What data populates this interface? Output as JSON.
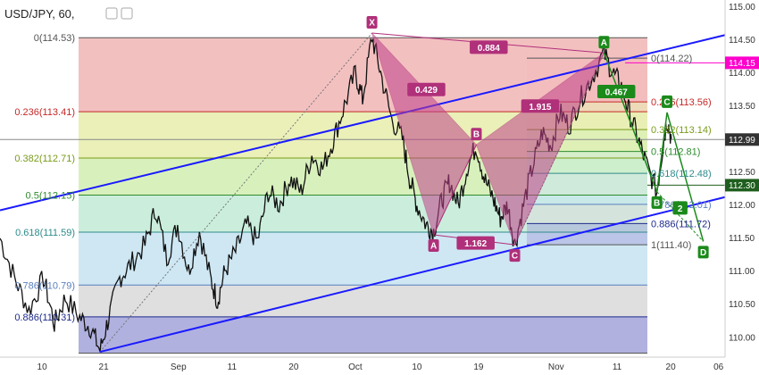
{
  "chart_data": {
    "type": "line",
    "title": "USD/JPY, 60,",
    "colors": {
      "candles": "#111111",
      "channel": "#1a1aff",
      "pattern": "#b0307a",
      "pattern_fill": "#c0408a",
      "highlight": "#ff00cc",
      "green_marker": "#1b8a1b",
      "grey_line": "#888888"
    },
    "ylim": [
      109.7,
      115.1
    ],
    "y_ticks": [
      "115.00",
      "114.50",
      "114.00",
      "113.50",
      "113.00",
      "112.50",
      "112.00",
      "111.50",
      "111.00",
      "110.50",
      "110.00"
    ],
    "x_ticks": [
      "10",
      "21",
      "Sep",
      "11",
      "20",
      "Oct",
      "10",
      "19",
      "Nov",
      "11",
      "20",
      "06"
    ],
    "price_tags": [
      {
        "label": "114.15",
        "value": 114.15,
        "color": "#ff00cc"
      },
      {
        "label": "112.99",
        "value": 112.99,
        "color": "#333333"
      },
      {
        "label": "112.30",
        "value": 112.3,
        "color": "#1e5e1e"
      }
    ],
    "fib_left": [
      {
        "label": "0(114.53)",
        "value": 114.53,
        "color": "#555555",
        "band": "#f2b9b9"
      },
      {
        "label": "0.236(113.41)",
        "value": 113.41,
        "color": "#c62828",
        "band": "#e8eeb0"
      },
      {
        "label": "0.382(112.71)",
        "value": 112.71,
        "color": "#7a9b1a",
        "band": "#d4f0b5"
      },
      {
        "label": "0.5(112.15)",
        "value": 112.15,
        "color": "#2e8b2e",
        "band": "#c5ecd8"
      },
      {
        "label": "0.618(111.59)",
        "value": 111.59,
        "color": "#2e8b8b",
        "band": "#c9e4f2"
      },
      {
        "label": "0.786(110.79)",
        "value": 110.79,
        "color": "#5b7fbf",
        "band": "#dcdcdc"
      },
      {
        "label": "0.886(110.31)",
        "value": 110.31,
        "color": "#1e2a8b",
        "band": "#a9a9dd"
      },
      {
        "label": "",
        "value": 109.76,
        "color": "#555555",
        "band": ""
      }
    ],
    "fib_right": [
      {
        "label": "0(114.22)",
        "value": 114.22,
        "color": "#555555",
        "band": "#f2b9b9"
      },
      {
        "label": "0.236(113.56)",
        "value": 113.56,
        "color": "#c62828",
        "band": "#e8eeb0"
      },
      {
        "label": "0.382(113.14)",
        "value": 113.14,
        "color": "#7a9b1a",
        "band": "#d4f0b5"
      },
      {
        "label": "0.5(112.81)",
        "value": 112.81,
        "color": "#2e8b2e",
        "band": "#c5ecd8"
      },
      {
        "label": "0.618(112.48)",
        "value": 112.48,
        "color": "#2e8b8b",
        "band": "#c9e4f2"
      },
      {
        "label": "0.786(112.01)",
        "value": 112.01,
        "color": "#5b7fbf",
        "band": "#dcdcdc"
      },
      {
        "label": "0.886(111.72)",
        "value": 111.72,
        "color": "#1e2a8b",
        "band": "#a9a9dd"
      },
      {
        "label": "1(111.40)",
        "value": 111.4,
        "color": "#555555",
        "band": ""
      }
    ],
    "pattern_points": [
      {
        "label": "X",
        "t": 0.513,
        "y": 114.6,
        "side": "above",
        "color": "#b0307a"
      },
      {
        "label": "A",
        "t": 0.598,
        "y": 111.55,
        "side": "below",
        "color": "#b0307a"
      },
      {
        "label": "B",
        "t": 0.657,
        "y": 112.91,
        "side": "above",
        "color": "#b0307a"
      },
      {
        "label": "C",
        "t": 0.71,
        "y": 111.4,
        "side": "below",
        "color": "#b0307a"
      },
      {
        "label": "A",
        "t": 0.833,
        "y": 114.3,
        "side": "above",
        "color": "#1b8a1b"
      },
      {
        "label": "B",
        "t": 0.906,
        "y": 112.2,
        "side": "below",
        "color": "#1b8a1b"
      },
      {
        "label": "C",
        "t": 0.92,
        "y": 113.4,
        "side": "above",
        "color": "#1b8a1b"
      },
      {
        "label": "D",
        "t": 0.97,
        "y": 111.45,
        "side": "below",
        "color": "#1b8a1b"
      }
    ],
    "ratios": [
      {
        "label": "0.884",
        "t": 0.674,
        "y": 114.38,
        "color": "#b0307a"
      },
      {
        "label": "0.429",
        "t": 0.588,
        "y": 113.74,
        "color": "#b0307a"
      },
      {
        "label": "1.915",
        "t": 0.745,
        "y": 113.49,
        "color": "#b0307a"
      },
      {
        "label": "1.162",
        "t": 0.656,
        "y": 111.42,
        "color": "#b0307a"
      },
      {
        "label": "0.467",
        "t": 0.85,
        "y": 113.71,
        "color": "#1b8a1b"
      },
      {
        "label": "2",
        "t": 0.938,
        "y": 111.95,
        "color": "#1b8a1b"
      }
    ],
    "channel": [
      {
        "t0": 0.0,
        "y0": 111.92,
        "t1": 1.0,
        "y1": 114.57
      },
      {
        "t0": 0.138,
        "y0": 109.78,
        "t1": 1.0,
        "y1": 112.12
      }
    ],
    "price_path": [
      [
        0.0,
        111.5
      ],
      [
        0.02,
        110.9
      ],
      [
        0.04,
        110.4
      ],
      [
        0.06,
        110.9
      ],
      [
        0.075,
        110.2
      ],
      [
        0.09,
        110.6
      ],
      [
        0.11,
        110.3
      ],
      [
        0.125,
        110.15
      ],
      [
        0.138,
        109.8
      ],
      [
        0.15,
        110.3
      ],
      [
        0.165,
        110.9
      ],
      [
        0.18,
        111.1
      ],
      [
        0.2,
        111.4
      ],
      [
        0.215,
        111.95
      ],
      [
        0.23,
        111.2
      ],
      [
        0.245,
        111.7
      ],
      [
        0.26,
        111.0
      ],
      [
        0.275,
        111.6
      ],
      [
        0.29,
        110.9
      ],
      [
        0.3,
        110.55
      ],
      [
        0.31,
        111.0
      ],
      [
        0.325,
        111.3
      ],
      [
        0.34,
        111.7
      ],
      [
        0.355,
        111.45
      ],
      [
        0.37,
        112.2
      ],
      [
        0.385,
        112.0
      ],
      [
        0.4,
        112.4
      ],
      [
        0.415,
        112.2
      ],
      [
        0.43,
        112.75
      ],
      [
        0.445,
        112.55
      ],
      [
        0.46,
        113.0
      ],
      [
        0.475,
        113.5
      ],
      [
        0.49,
        114.0
      ],
      [
        0.5,
        113.6
      ],
      [
        0.513,
        114.55
      ],
      [
        0.525,
        114.0
      ],
      [
        0.54,
        113.3
      ],
      [
        0.555,
        113.0
      ],
      [
        0.565,
        112.4
      ],
      [
        0.575,
        112.0
      ],
      [
        0.588,
        111.7
      ],
      [
        0.598,
        111.6
      ],
      [
        0.61,
        112.1
      ],
      [
        0.62,
        112.35
      ],
      [
        0.632,
        112.0
      ],
      [
        0.645,
        112.6
      ],
      [
        0.657,
        112.9
      ],
      [
        0.668,
        112.4
      ],
      [
        0.68,
        112.1
      ],
      [
        0.69,
        111.8
      ],
      [
        0.7,
        112.0
      ],
      [
        0.71,
        111.4
      ],
      [
        0.722,
        112.0
      ],
      [
        0.735,
        112.6
      ],
      [
        0.748,
        113.1
      ],
      [
        0.76,
        112.9
      ],
      [
        0.772,
        113.4
      ],
      [
        0.785,
        113.2
      ],
      [
        0.8,
        113.6
      ],
      [
        0.815,
        113.9
      ],
      [
        0.833,
        114.3
      ],
      [
        0.845,
        114.0
      ],
      [
        0.857,
        113.8
      ],
      [
        0.868,
        113.4
      ],
      [
        0.88,
        113.0
      ],
      [
        0.892,
        112.6
      ],
      [
        0.906,
        112.2
      ],
      [
        0.913,
        112.8
      ],
      [
        0.92,
        113.3
      ],
      [
        0.926,
        113.0
      ]
    ]
  }
}
